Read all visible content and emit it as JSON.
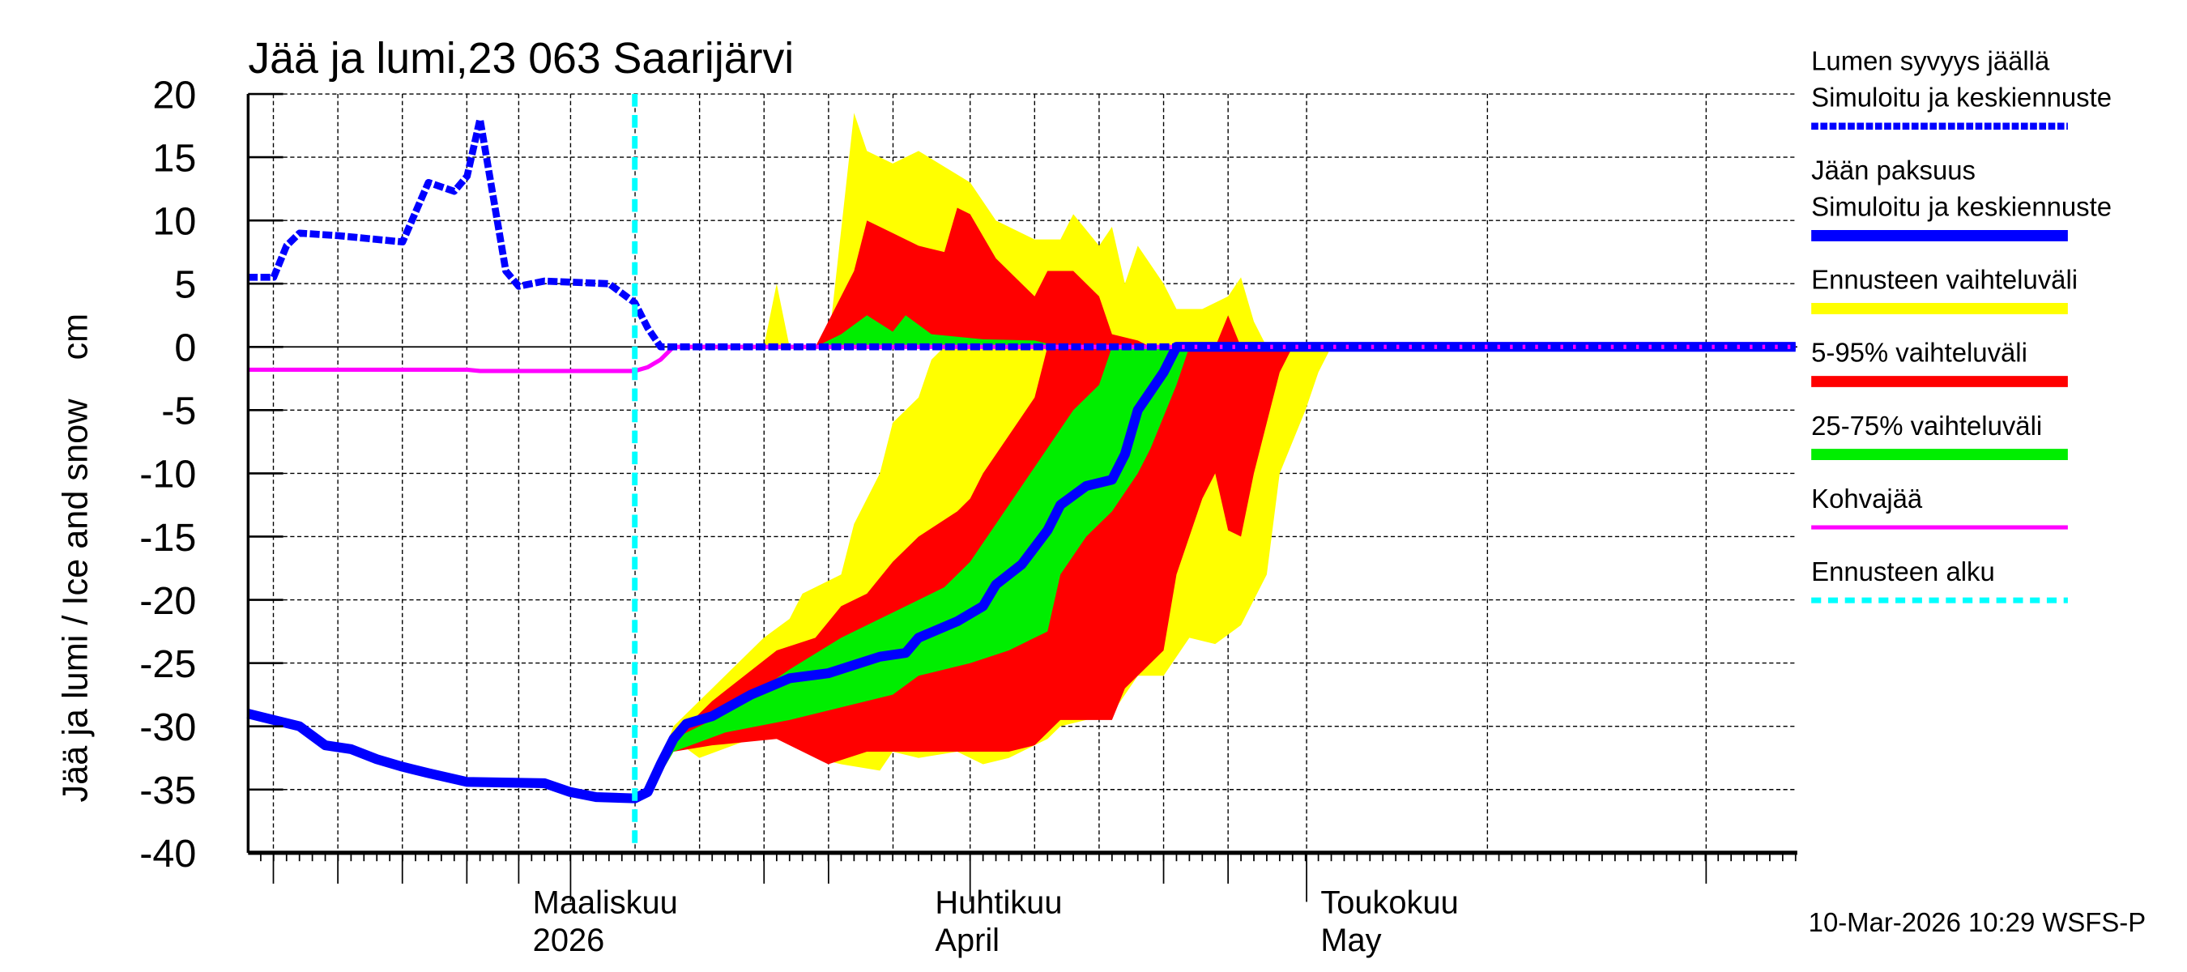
{
  "chart_data": {
    "type": "area",
    "title": "Jää ja lumi,23 063 Saarijärvi",
    "ylabel": "Jää ja lumi / Ice and snow    cm",
    "ylim": [
      -40,
      20
    ],
    "xlim": [
      "2026-02-08",
      "2026-06-08"
    ],
    "yticks": [
      20,
      15,
      10,
      5,
      0,
      -5,
      -10,
      -15,
      -20,
      -25,
      -30,
      -35,
      -40
    ],
    "xtick_labels": [
      {
        "date": "2026-03-01",
        "line1": "Maaliskuu",
        "line2": "2026"
      },
      {
        "date": "2026-04-01",
        "line1": "Huhtikuu",
        "line2": "April"
      },
      {
        "date": "2026-05-01",
        "line1": "Toukokuu",
        "line2": "May"
      }
    ],
    "grid": true,
    "legend_position": "right",
    "forecast_start": "2026-03-10",
    "timestamp": "10-Mar-2026 10:29 WSFS-P",
    "colors": {
      "snow": "#0000ff",
      "ice": "#0000ff",
      "range": "#ffff00",
      "p5_95": "#ff0000",
      "p25_75": "#00ee00",
      "slush": "#ff00ff",
      "forecast": "#00ffff"
    },
    "legend": [
      {
        "key": "snow",
        "line1": "Lumen syvyys jäällä",
        "line2": "Simuloitu ja keskiennuste",
        "style": "dashed-thick",
        "color": "#0000ff"
      },
      {
        "key": "ice",
        "line1": "Jään paksuus",
        "line2": "Simuloitu ja keskiennuste",
        "style": "solid-thick",
        "color": "#0000ff"
      },
      {
        "key": "range",
        "line1": "Ennusteen vaihteluväli",
        "style": "band",
        "color": "#ffff00"
      },
      {
        "key": "p5_95",
        "line1": "5-95% vaihteluväli",
        "style": "band",
        "color": "#ff0000"
      },
      {
        "key": "p25_75",
        "line1": "25-75% vaihteluväli",
        "style": "band",
        "color": "#00ee00"
      },
      {
        "key": "slush",
        "line1": "Kohvajää",
        "style": "solid",
        "color": "#ff00ff"
      },
      {
        "key": "forecast",
        "line1": "Ennusteen alku",
        "style": "dashed",
        "color": "#00ffff"
      }
    ],
    "series": {
      "snow_depth": [
        [
          "2026-02-08",
          5.5
        ],
        [
          "2026-02-10",
          5.5
        ],
        [
          "2026-02-11",
          8
        ],
        [
          "2026-02-12",
          9
        ],
        [
          "2026-02-15",
          8.8
        ],
        [
          "2026-02-20",
          8.3
        ],
        [
          "2026-02-22",
          13
        ],
        [
          "2026-02-24",
          12.3
        ],
        [
          "2026-02-25",
          13.5
        ],
        [
          "2026-02-26",
          18
        ],
        [
          "2026-02-27",
          12
        ],
        [
          "2026-02-28",
          6
        ],
        [
          "2026-03-01",
          4.8
        ],
        [
          "2026-03-03",
          5.2
        ],
        [
          "2026-03-08",
          5
        ],
        [
          "2026-03-10",
          3.5
        ],
        [
          "2026-03-11",
          1.5
        ],
        [
          "2026-03-12",
          0
        ],
        [
          "2026-06-08",
          0
        ]
      ],
      "ice_thickness": [
        [
          "2026-02-08",
          -29
        ],
        [
          "2026-02-10",
          -29.5
        ],
        [
          "2026-02-12",
          -30
        ],
        [
          "2026-02-14",
          -31.5
        ],
        [
          "2026-02-16",
          -31.8
        ],
        [
          "2026-02-18",
          -32.6
        ],
        [
          "2026-02-20",
          -33.2
        ],
        [
          "2026-02-22",
          -33.7
        ],
        [
          "2026-02-25",
          -34.4
        ],
        [
          "2026-03-03",
          -34.5
        ],
        [
          "2026-03-05",
          -35.2
        ],
        [
          "2026-03-07",
          -35.6
        ],
        [
          "2026-03-10",
          -35.7
        ],
        [
          "2026-03-11",
          -35.2
        ],
        [
          "2026-03-12",
          -33
        ],
        [
          "2026-03-13",
          -31
        ],
        [
          "2026-03-14",
          -29.8
        ],
        [
          "2026-03-16",
          -29.2
        ],
        [
          "2026-03-19",
          -27.5
        ],
        [
          "2026-03-22",
          -26.2
        ],
        [
          "2026-03-25",
          -25.8
        ],
        [
          "2026-03-29",
          -24.5
        ],
        [
          "2026-03-31",
          -24.2
        ],
        [
          "2026-04-01",
          -23
        ],
        [
          "2026-04-04",
          -21.7
        ],
        [
          "2026-04-06",
          -20.5
        ],
        [
          "2026-04-07",
          -18.8
        ],
        [
          "2026-04-09",
          -17.2
        ],
        [
          "2026-04-11",
          -14.5
        ],
        [
          "2026-04-12",
          -12.5
        ],
        [
          "2026-04-14",
          -11
        ],
        [
          "2026-04-16",
          -10.5
        ],
        [
          "2026-04-17",
          -8.5
        ],
        [
          "2026-04-18",
          -5
        ],
        [
          "2026-04-19",
          -3.5
        ],
        [
          "2026-04-20",
          -2
        ],
        [
          "2026-04-21",
          0
        ],
        [
          "2026-06-08",
          0
        ]
      ],
      "slush_ice": [
        [
          "2026-02-08",
          -1.8
        ],
        [
          "2026-02-25",
          -1.8
        ],
        [
          "2026-02-26",
          -1.9
        ],
        [
          "2026-03-10",
          -1.9
        ],
        [
          "2026-03-11",
          -1.6
        ],
        [
          "2026-03-12",
          -1
        ],
        [
          "2026-03-13",
          0
        ],
        [
          "2026-06-08",
          0
        ]
      ]
    },
    "bands": {
      "snow_range": [
        [
          "2026-03-20",
          0
        ],
        [
          "2026-03-21",
          5
        ],
        [
          "2026-03-22",
          0
        ],
        [
          "2026-03-25",
          0
        ],
        [
          "2026-03-27",
          18.5
        ],
        [
          "2026-03-28",
          15.5
        ],
        [
          "2026-03-30",
          14.5
        ],
        [
          "2026-04-01",
          15.5
        ],
        [
          "2026-04-05",
          13
        ],
        [
          "2026-04-07",
          10
        ],
        [
          "2026-04-10",
          8.5
        ],
        [
          "2026-04-12",
          8.5
        ],
        [
          "2026-04-13",
          10.5
        ],
        [
          "2026-04-15",
          8
        ],
        [
          "2026-04-16",
          9.5
        ],
        [
          "2026-04-17",
          5
        ],
        [
          "2026-04-18",
          8
        ],
        [
          "2026-04-20",
          5
        ],
        [
          "2026-04-21",
          3
        ],
        [
          "2026-04-23",
          3
        ],
        [
          "2026-04-25",
          4
        ],
        [
          "2026-04-26",
          5.5
        ],
        [
          "2026-04-27",
          2
        ],
        [
          "2026-04-28",
          0
        ]
      ],
      "snow_p5_95": [
        [
          "2026-03-24",
          0
        ],
        [
          "2026-03-27",
          6
        ],
        [
          "2026-03-28",
          10
        ],
        [
          "2026-03-30",
          9
        ],
        [
          "2026-04-01",
          8
        ],
        [
          "2026-04-03",
          7.5
        ],
        [
          "2026-04-04",
          11
        ],
        [
          "2026-04-05",
          10.5
        ],
        [
          "2026-04-07",
          7
        ],
        [
          "2026-04-10",
          4
        ],
        [
          "2026-04-11",
          6
        ],
        [
          "2026-04-13",
          6
        ],
        [
          "2026-04-15",
          4
        ],
        [
          "2026-04-16",
          1
        ],
        [
          "2026-04-18",
          0.5
        ],
        [
          "2026-04-19",
          0
        ],
        [
          "2026-04-24",
          0
        ],
        [
          "2026-04-25",
          2.5
        ],
        [
          "2026-04-26",
          0
        ]
      ],
      "snow_p25_75": [
        [
          "2026-03-24",
          0
        ],
        [
          "2026-03-26",
          1
        ],
        [
          "2026-03-28",
          2.5
        ],
        [
          "2026-03-30",
          1.2
        ],
        [
          "2026-03-31",
          2.5
        ],
        [
          "2026-04-02",
          1
        ],
        [
          "2026-04-06",
          0.6
        ],
        [
          "2026-04-10",
          0.5
        ],
        [
          "2026-04-12",
          0
        ]
      ],
      "ice_range": {
        "upper": [
          [
            "2026-03-11",
            -35.5
          ],
          [
            "2026-03-13",
            -30
          ],
          [
            "2026-03-16",
            -27
          ],
          [
            "2026-03-20",
            -23
          ],
          [
            "2026-03-22",
            -21.5
          ],
          [
            "2026-03-23",
            -19.5
          ],
          [
            "2026-03-26",
            -18
          ],
          [
            "2026-03-27",
            -14
          ],
          [
            "2026-03-29",
            -10
          ],
          [
            "2026-03-30",
            -6
          ],
          [
            "2026-04-01",
            -4
          ],
          [
            "2026-04-02",
            -1
          ],
          [
            "2026-04-03",
            0
          ]
        ],
        "lower": [
          [
            "2026-03-11",
            -35.5
          ],
          [
            "2026-03-13",
            -31
          ],
          [
            "2026-03-15",
            -32.5
          ],
          [
            "2026-03-19",
            -31
          ],
          [
            "2026-03-22",
            -31
          ],
          [
            "2026-03-24",
            -32.5
          ],
          [
            "2026-03-26",
            -33
          ],
          [
            "2026-03-29",
            -33.5
          ],
          [
            "2026-03-30",
            -32
          ],
          [
            "2026-04-01",
            -32.5
          ],
          [
            "2026-04-04",
            -32
          ],
          [
            "2026-04-06",
            -33
          ],
          [
            "2026-04-08",
            -32.5
          ],
          [
            "2026-04-11",
            -31
          ],
          [
            "2026-04-12",
            -30
          ],
          [
            "2026-04-16",
            -29
          ],
          [
            "2026-04-18",
            -26
          ],
          [
            "2026-04-20",
            -26
          ],
          [
            "2026-04-22",
            -23
          ],
          [
            "2026-04-24",
            -23.5
          ],
          [
            "2026-04-26",
            -22
          ],
          [
            "2026-04-28",
            -18
          ],
          [
            "2026-04-29",
            -10
          ],
          [
            "2026-05-01",
            -5
          ],
          [
            "2026-05-02",
            -2
          ],
          [
            "2026-05-03",
            0
          ]
        ]
      },
      "ice_p5_95": {
        "upper": [
          [
            "2026-03-11",
            -35.5
          ],
          [
            "2026-03-13",
            -31
          ],
          [
            "2026-03-16",
            -28
          ],
          [
            "2026-03-21",
            -24
          ],
          [
            "2026-03-24",
            -23
          ],
          [
            "2026-03-26",
            -20.5
          ],
          [
            "2026-03-28",
            -19.5
          ],
          [
            "2026-03-30",
            -17
          ],
          [
            "2026-04-01",
            -15
          ],
          [
            "2026-04-04",
            -13
          ],
          [
            "2026-04-05",
            -12
          ],
          [
            "2026-04-06",
            -10
          ],
          [
            "2026-04-08",
            -7
          ],
          [
            "2026-04-10",
            -4
          ],
          [
            "2026-04-11",
            0
          ]
        ],
        "lower": [
          [
            "2026-03-11",
            -35.5
          ],
          [
            "2026-03-13",
            -32
          ],
          [
            "2026-03-16",
            -31.5
          ],
          [
            "2026-03-21",
            -31
          ],
          [
            "2026-03-25",
            -33
          ],
          [
            "2026-03-28",
            -32
          ],
          [
            "2026-03-31",
            -32
          ],
          [
            "2026-04-04",
            -32
          ],
          [
            "2026-04-08",
            -32
          ],
          [
            "2026-04-10",
            -31.5
          ],
          [
            "2026-04-12",
            -29.5
          ],
          [
            "2026-04-16",
            -29.5
          ],
          [
            "2026-04-17",
            -27
          ],
          [
            "2026-04-18",
            -26
          ],
          [
            "2026-04-20",
            -24
          ],
          [
            "2026-04-21",
            -18
          ],
          [
            "2026-04-23",
            -12
          ],
          [
            "2026-04-24",
            -10
          ],
          [
            "2026-04-25",
            -14.5
          ],
          [
            "2026-04-26",
            -15
          ],
          [
            "2026-04-27",
            -10
          ],
          [
            "2026-04-28",
            -6
          ],
          [
            "2026-04-29",
            -2
          ],
          [
            "2026-04-30",
            0
          ]
        ]
      },
      "ice_p25_75": {
        "upper": [
          [
            "2026-03-11",
            -35.5
          ],
          [
            "2026-03-13",
            -31
          ],
          [
            "2026-03-17",
            -29
          ],
          [
            "2026-03-22",
            -25.5
          ],
          [
            "2026-03-26",
            -23
          ],
          [
            "2026-03-30",
            -21
          ],
          [
            "2026-04-03",
            -19
          ],
          [
            "2026-04-05",
            -17
          ],
          [
            "2026-04-07",
            -14
          ],
          [
            "2026-04-09",
            -11
          ],
          [
            "2026-04-11",
            -8
          ],
          [
            "2026-04-13",
            -5
          ],
          [
            "2026-04-15",
            -3
          ],
          [
            "2026-04-16",
            0
          ]
        ],
        "lower": [
          [
            "2026-03-11",
            -35.5
          ],
          [
            "2026-03-13",
            -32
          ],
          [
            "2026-03-17",
            -30.5
          ],
          [
            "2026-03-22",
            -29.5
          ],
          [
            "2026-03-26",
            -28.5
          ],
          [
            "2026-03-30",
            -27.5
          ],
          [
            "2026-04-01",
            -26
          ],
          [
            "2026-04-05",
            -25
          ],
          [
            "2026-04-08",
            -24
          ],
          [
            "2026-04-11",
            -22.5
          ],
          [
            "2026-04-12",
            -18
          ],
          [
            "2026-04-14",
            -15
          ],
          [
            "2026-04-16",
            -13
          ],
          [
            "2026-04-18",
            -10
          ],
          [
            "2026-04-19",
            -8
          ],
          [
            "2026-04-21",
            -3
          ],
          [
            "2026-04-22",
            0
          ]
        ]
      }
    }
  }
}
